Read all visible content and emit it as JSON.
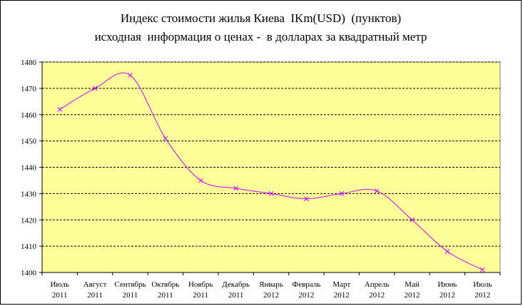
{
  "chart_data": {
    "type": "line",
    "title": "Индекс стоимости жилья Киева  IKm(USD)  (пунктов)",
    "subtitle": "исходная  информация о ценах -  в долларах за квадратный метр",
    "xlabel": "",
    "ylabel": "",
    "ylim": [
      1400,
      1480
    ],
    "yticks": [
      1400,
      1410,
      1420,
      1430,
      1440,
      1450,
      1460,
      1470,
      1480
    ],
    "grid": true,
    "legend": "none",
    "categories": [
      [
        "Июль",
        "2011"
      ],
      [
        "Август",
        "2011"
      ],
      [
        "Сентябрь",
        "2011"
      ],
      [
        "Октябрь",
        "2011"
      ],
      [
        "Ноябрь",
        "2011"
      ],
      [
        "Декабрь",
        "2011"
      ],
      [
        "Январь",
        "2012"
      ],
      [
        "Февраль",
        "2012"
      ],
      [
        "Март",
        "2012"
      ],
      [
        "Апрель",
        "2012"
      ],
      [
        "Май",
        "2012"
      ],
      [
        "Июнь",
        "2012"
      ],
      [
        "Июль",
        "2012"
      ]
    ],
    "series": [
      {
        "values": [
          1462,
          1470,
          1475,
          1451,
          1435,
          1432,
          1430,
          1428,
          1430,
          1431,
          1420,
          1408,
          1401
        ]
      }
    ],
    "colors": {
      "plot_background": "#ffff99",
      "line": "#cc00ff",
      "marker": "#cc00ff",
      "grid": "#000000",
      "axis": "#000000"
    }
  }
}
